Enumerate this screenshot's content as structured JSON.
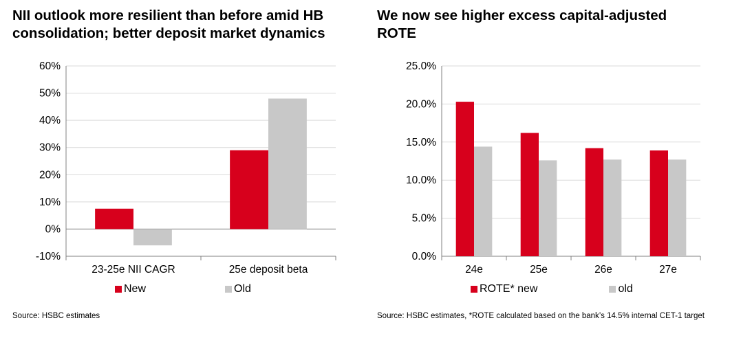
{
  "colors": {
    "new": "#d7001c",
    "old": "#c8c8c8",
    "grid": "#d9d9d9",
    "axis": "#808080"
  },
  "left": {
    "title_lines": [
      "NII outlook more resilient than before amid HB",
      "consolidation; better deposit market dynamics"
    ],
    "source": "Source: HSBC estimates"
  },
  "right": {
    "title_lines": [
      "We now see higher excess capital-adjusted",
      "ROTE"
    ],
    "source": "Source: HSBC estimates, *ROTE calculated based on the bank’s 14.5% internal CET-1 target"
  },
  "chart_data": [
    {
      "type": "bar",
      "title": "NII outlook more resilient than before amid HB consolidation; better deposit market dynamics",
      "categories": [
        "23-25e NII CAGR",
        "25e deposit beta"
      ],
      "series": [
        {
          "name": "New",
          "values": [
            7.5,
            29
          ]
        },
        {
          "name": "Old",
          "values": [
            -6,
            48
          ]
        }
      ],
      "ylim": [
        -10,
        60
      ],
      "yticks": [
        -10,
        0,
        10,
        20,
        30,
        40,
        50,
        60
      ],
      "ytick_labels": [
        "-10%",
        "0%",
        "10%",
        "20%",
        "30%",
        "40%",
        "50%",
        "60%"
      ],
      "grid": true,
      "legend": "bottom"
    },
    {
      "type": "bar",
      "title": "We now see higher excess capital-adjusted ROTE",
      "categories": [
        "24e",
        "25e",
        "26e",
        "27e"
      ],
      "series": [
        {
          "name": "ROTE* new",
          "values": [
            20.3,
            16.2,
            14.2,
            13.9
          ]
        },
        {
          "name": "old",
          "values": [
            14.4,
            12.6,
            12.7,
            12.7
          ]
        }
      ],
      "ylim": [
        0,
        25
      ],
      "yticks": [
        0,
        5,
        10,
        15,
        20,
        25
      ],
      "ytick_labels": [
        "0.0%",
        "5.0%",
        "10.0%",
        "15.0%",
        "20.0%",
        "25.0%"
      ],
      "grid": true,
      "legend": "bottom"
    }
  ]
}
